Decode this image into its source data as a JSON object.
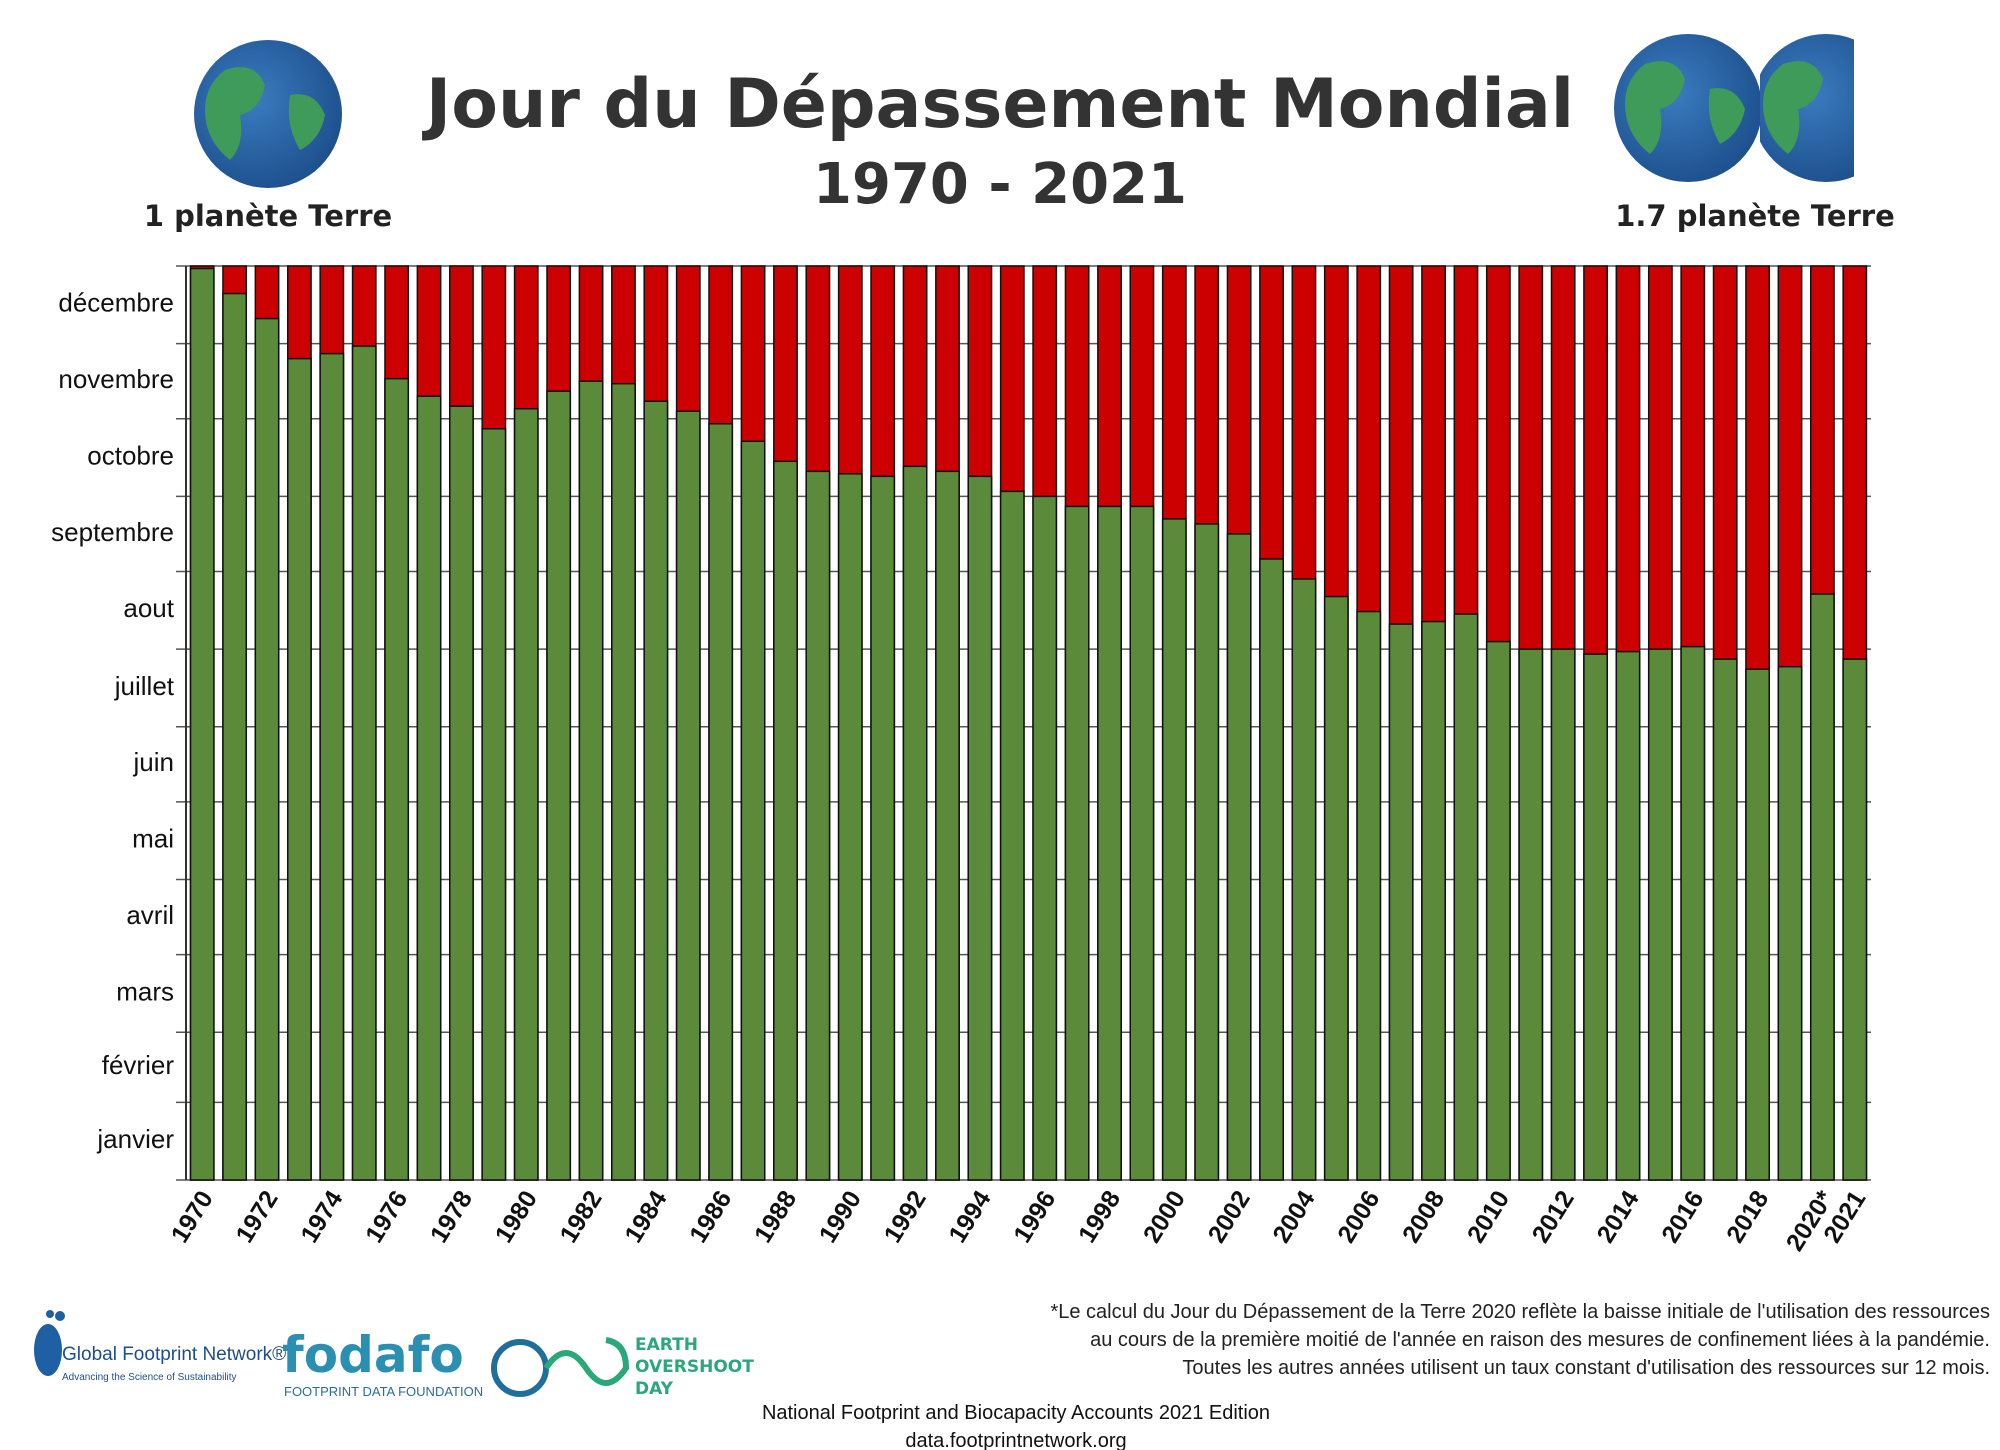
{
  "chart_data": {
    "type": "bar",
    "title": "Jour du Dépassement Mondial",
    "subtitle": "1970 - 2021",
    "left_caption": "1 planète Terre",
    "right_caption": "1.7 planète Terre",
    "categories": [
      "1970",
      null,
      "1972",
      null,
      "1974",
      null,
      "1976",
      null,
      "1978",
      null,
      "1980",
      null,
      "1982",
      null,
      "1984",
      null,
      "1986",
      null,
      "1988",
      null,
      "1990",
      null,
      "1992",
      null,
      "1994",
      null,
      "1996",
      null,
      "1998",
      null,
      "2000",
      null,
      "2002",
      null,
      "2004",
      null,
      "2006",
      null,
      "2008",
      null,
      "2010",
      null,
      "2012",
      null,
      "2014",
      null,
      "2016",
      null,
      "2018",
      null,
      "2020*",
      "2021"
    ],
    "values": [
      364,
      354,
      344,
      328,
      330,
      333,
      320,
      313,
      309,
      300,
      308,
      315,
      319,
      318,
      311,
      307,
      302,
      295,
      287,
      283,
      282,
      281,
      285,
      283,
      281,
      275,
      273,
      269,
      269,
      269,
      264,
      262,
      258,
      248,
      240,
      233,
      227,
      222,
      223,
      226,
      215,
      212,
      212,
      210,
      211,
      212,
      213,
      208,
      204,
      205,
      234,
      208
    ],
    "color": "#5a8a3a",
    "background_color": "#cc0000",
    "ylim": [
      0,
      365
    ],
    "yticks": [
      {
        "value": 15.5,
        "label": "janvier"
      },
      {
        "value": 45,
        "label": "février"
      },
      {
        "value": 74.5,
        "label": "mars"
      },
      {
        "value": 105,
        "label": "avril"
      },
      {
        "value": 135.5,
        "label": "mai"
      },
      {
        "value": 166,
        "label": "juin"
      },
      {
        "value": 196.5,
        "label": "juillet"
      },
      {
        "value": 227.5,
        "label": "aout"
      },
      {
        "value": 258,
        "label": "septembre"
      },
      {
        "value": 288.5,
        "label": "octobre"
      },
      {
        "value": 319,
        "label": "novembre"
      },
      {
        "value": 349.5,
        "label": "décembre"
      }
    ],
    "ygrid": [
      0,
      31,
      59,
      90,
      120,
      151,
      181,
      212,
      243,
      273,
      304,
      334,
      365
    ],
    "grid": true
  },
  "footer": {
    "note": [
      "*Le calcul du Jour du Dépassement de la Terre 2020 reflète la baisse initiale de l'utilisation des ressources",
      "au cours de la première moitié de l'année en raison des mesures de confinement liées à la pandémie.",
      "Toutes les autres années utilisent un taux constant d'utilisation des ressources sur 12 mois."
    ],
    "source": [
      "National Footprint and Biocapacity Accounts 2021 Edition",
      "data.footprintnetwork.org"
    ],
    "logos": {
      "gfn": "Global Footprint Network®",
      "gfn_tagline": "Advancing the Science of Sustainability",
      "fodafo": "fodafo",
      "fodafo_tagline": "FOOTPRINT DATA FOUNDATION",
      "eod": [
        "EARTH",
        "OVERSHOOT",
        "DAY"
      ]
    }
  }
}
